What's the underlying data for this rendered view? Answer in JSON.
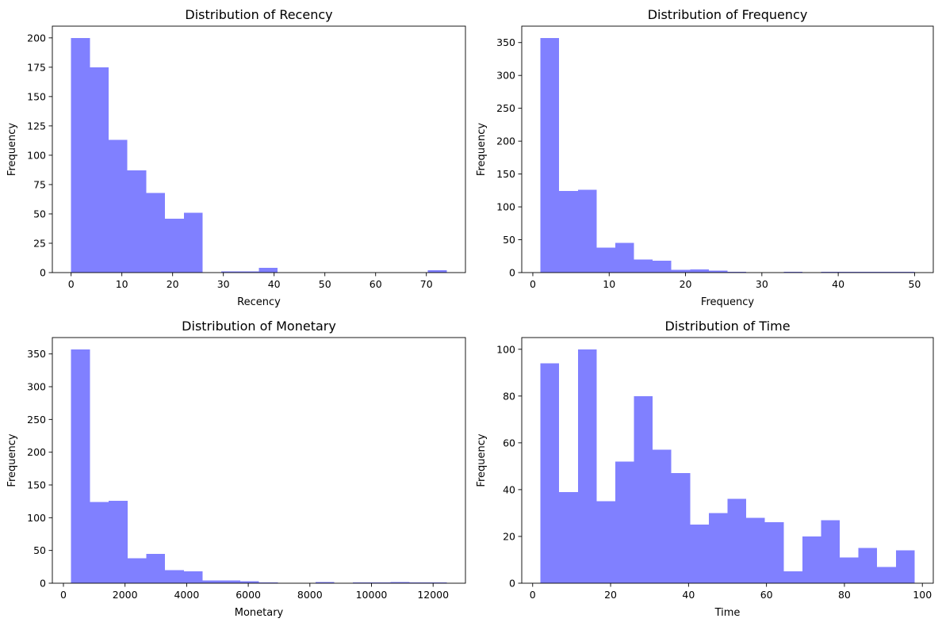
{
  "chart_data": [
    {
      "type": "bar",
      "title": "Distribution of Recency",
      "xlabel": "Recency",
      "ylabel": "Frequency",
      "xlim": [
        -3.7,
        77.7
      ],
      "ylim": [
        0,
        210
      ],
      "xticks": [
        0,
        10,
        20,
        30,
        40,
        50,
        60,
        70
      ],
      "yticks": [
        0,
        25,
        50,
        75,
        100,
        125,
        150,
        175,
        200
      ],
      "bin_start": 0,
      "bin_width": 3.7,
      "values": [
        200,
        175,
        113,
        87,
        68,
        46,
        51,
        0,
        1,
        1,
        4,
        0,
        0,
        0,
        0,
        0,
        0,
        0,
        0,
        2
      ],
      "color": "#8080ff",
      "grid": false
    },
    {
      "type": "bar",
      "title": "Distribution of Frequency",
      "xlabel": "Frequency",
      "ylabel": "Frequency",
      "xlim": [
        -1.45,
        52.45
      ],
      "ylim": [
        0,
        375
      ],
      "xticks": [
        0,
        10,
        20,
        30,
        40,
        50
      ],
      "yticks": [
        0,
        50,
        100,
        150,
        200,
        250,
        300,
        350
      ],
      "bin_start": 1,
      "bin_width": 2.45,
      "values": [
        357,
        124,
        126,
        38,
        45,
        20,
        18,
        4,
        5,
        3,
        1,
        0,
        0,
        1,
        0,
        1,
        1,
        1,
        1,
        1
      ],
      "color": "#8080ff",
      "grid": false
    },
    {
      "type": "bar",
      "title": "Distribution of Monetary",
      "xlabel": "Monetary",
      "ylabel": "Frequency",
      "xlim": [
        -360,
        13050
      ],
      "ylim": [
        0,
        375
      ],
      "xticks": [
        0,
        2000,
        4000,
        6000,
        8000,
        10000,
        12000
      ],
      "yticks": [
        0,
        50,
        100,
        150,
        200,
        250,
        300,
        350
      ],
      "bin_start": 250,
      "bin_width": 610,
      "values": [
        357,
        124,
        126,
        38,
        45,
        20,
        18,
        4,
        4,
        3,
        1,
        0,
        0,
        2,
        0,
        1,
        1,
        2,
        1,
        1
      ],
      "color": "#8080ff",
      "grid": false
    },
    {
      "type": "bar",
      "title": "Distribution of Time",
      "xlabel": "Time",
      "ylabel": "Frequency",
      "xlim": [
        -2.8,
        102.8
      ],
      "ylim": [
        0,
        105
      ],
      "xticks": [
        0,
        20,
        40,
        60,
        80,
        100
      ],
      "yticks": [
        0,
        20,
        40,
        60,
        80,
        100
      ],
      "bin_start": 2,
      "bin_width": 4.8,
      "values": [
        94,
        39,
        100,
        35,
        52,
        80,
        57,
        47,
        25,
        30,
        36,
        28,
        26,
        5,
        20,
        27,
        11,
        15,
        7,
        14
      ],
      "color": "#8080ff",
      "grid": false
    }
  ]
}
